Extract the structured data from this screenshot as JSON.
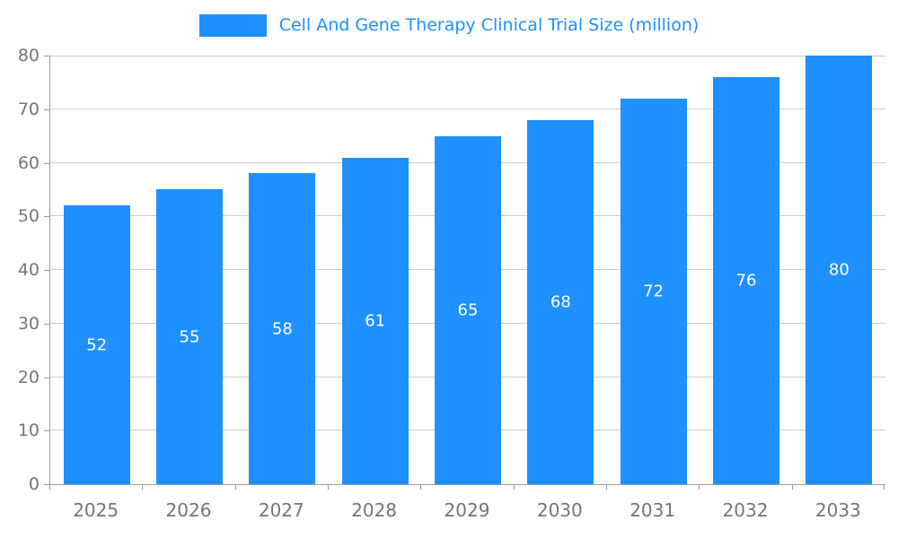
{
  "chart_data": {
    "type": "bar",
    "title": "Cell And Gene Therapy Clinical Trial Size (million)",
    "categories": [
      "2025",
      "2026",
      "2027",
      "2028",
      "2029",
      "2030",
      "2031",
      "2032",
      "2033"
    ],
    "values": [
      52,
      55,
      58,
      61,
      65,
      68,
      72,
      76,
      80
    ],
    "ylim": [
      0,
      80
    ],
    "ytick_interval": 10,
    "grid": true,
    "legend_position": "top-center",
    "bar_color": "#1e90ff",
    "title_color": "#1e90ff",
    "axis_label_color": "#757575",
    "value_label_color": "#ffffff"
  }
}
